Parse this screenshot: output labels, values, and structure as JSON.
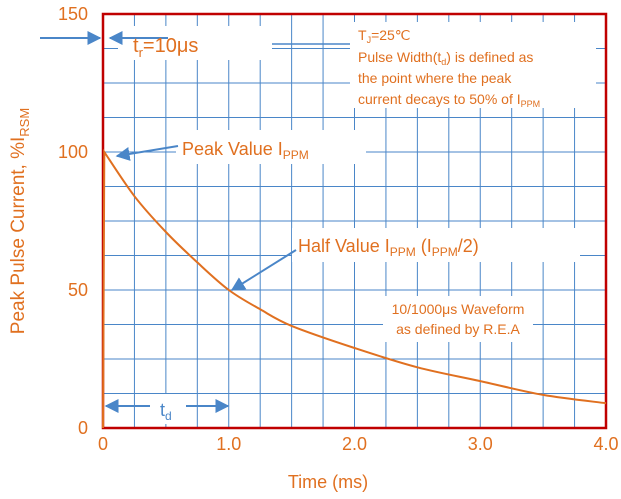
{
  "chart_data": {
    "type": "line",
    "xlabel": "Time (ms)",
    "ylabel": {
      "main": "Peak Pulse Current, %I",
      "sub": "RSM"
    },
    "xlim": [
      0,
      4.0
    ],
    "ylim": [
      0,
      150
    ],
    "x_ticks": [
      "0",
      "1.0",
      "2.0",
      "3.0",
      "4.0"
    ],
    "y_ticks": [
      "0",
      "50",
      "100",
      "150"
    ],
    "grid": true,
    "series": [
      {
        "values": [
          {
            "x": 0.0,
            "y": 0.0
          },
          {
            "x": 0.01,
            "y": 100
          },
          {
            "x": 0.25,
            "y": 84
          },
          {
            "x": 0.5,
            "y": 71
          },
          {
            "x": 0.75,
            "y": 60
          },
          {
            "x": 1.0,
            "y": 50
          },
          {
            "x": 1.25,
            "y": 43
          },
          {
            "x": 1.5,
            "y": 37
          },
          {
            "x": 2.0,
            "y": 29
          },
          {
            "x": 2.5,
            "y": 22
          },
          {
            "x": 3.0,
            "y": 17
          },
          {
            "x": 3.5,
            "y": 12
          },
          {
            "x": 4.0,
            "y": 9
          }
        ]
      }
    ],
    "annotations": {
      "tr_main": "t",
      "tr_sub": "r",
      "tr_value": "=10μs",
      "peak_main": "Peak Value I",
      "peak_sub": "PPM",
      "half_main": "Half Value I",
      "half_sub1": "PPM",
      "half_mid": " (I",
      "half_sub2": "PPM",
      "half_end": "/2)",
      "td_main": "t",
      "td_sub": "d",
      "tj_main": "T",
      "tj_sub": "J",
      "tj_value": "=25℃",
      "pw_line1_a": "Pulse Width(t",
      "pw_line1_sub": "d",
      "pw_line1_b": ") is defined as",
      "pw_line2": "the point where the peak",
      "pw_line3_a": "current decays to 50% of I",
      "pw_line3_sub": "PPM",
      "waveform_line1": "10/1000μs Waveform",
      "waveform_line2": "as defined by R.E.A"
    },
    "colors": {
      "curve": "#E07020",
      "frame": "#C00000",
      "grid": "#4A86C8",
      "text": "#E07020",
      "arrow": "#4A86C8"
    }
  }
}
